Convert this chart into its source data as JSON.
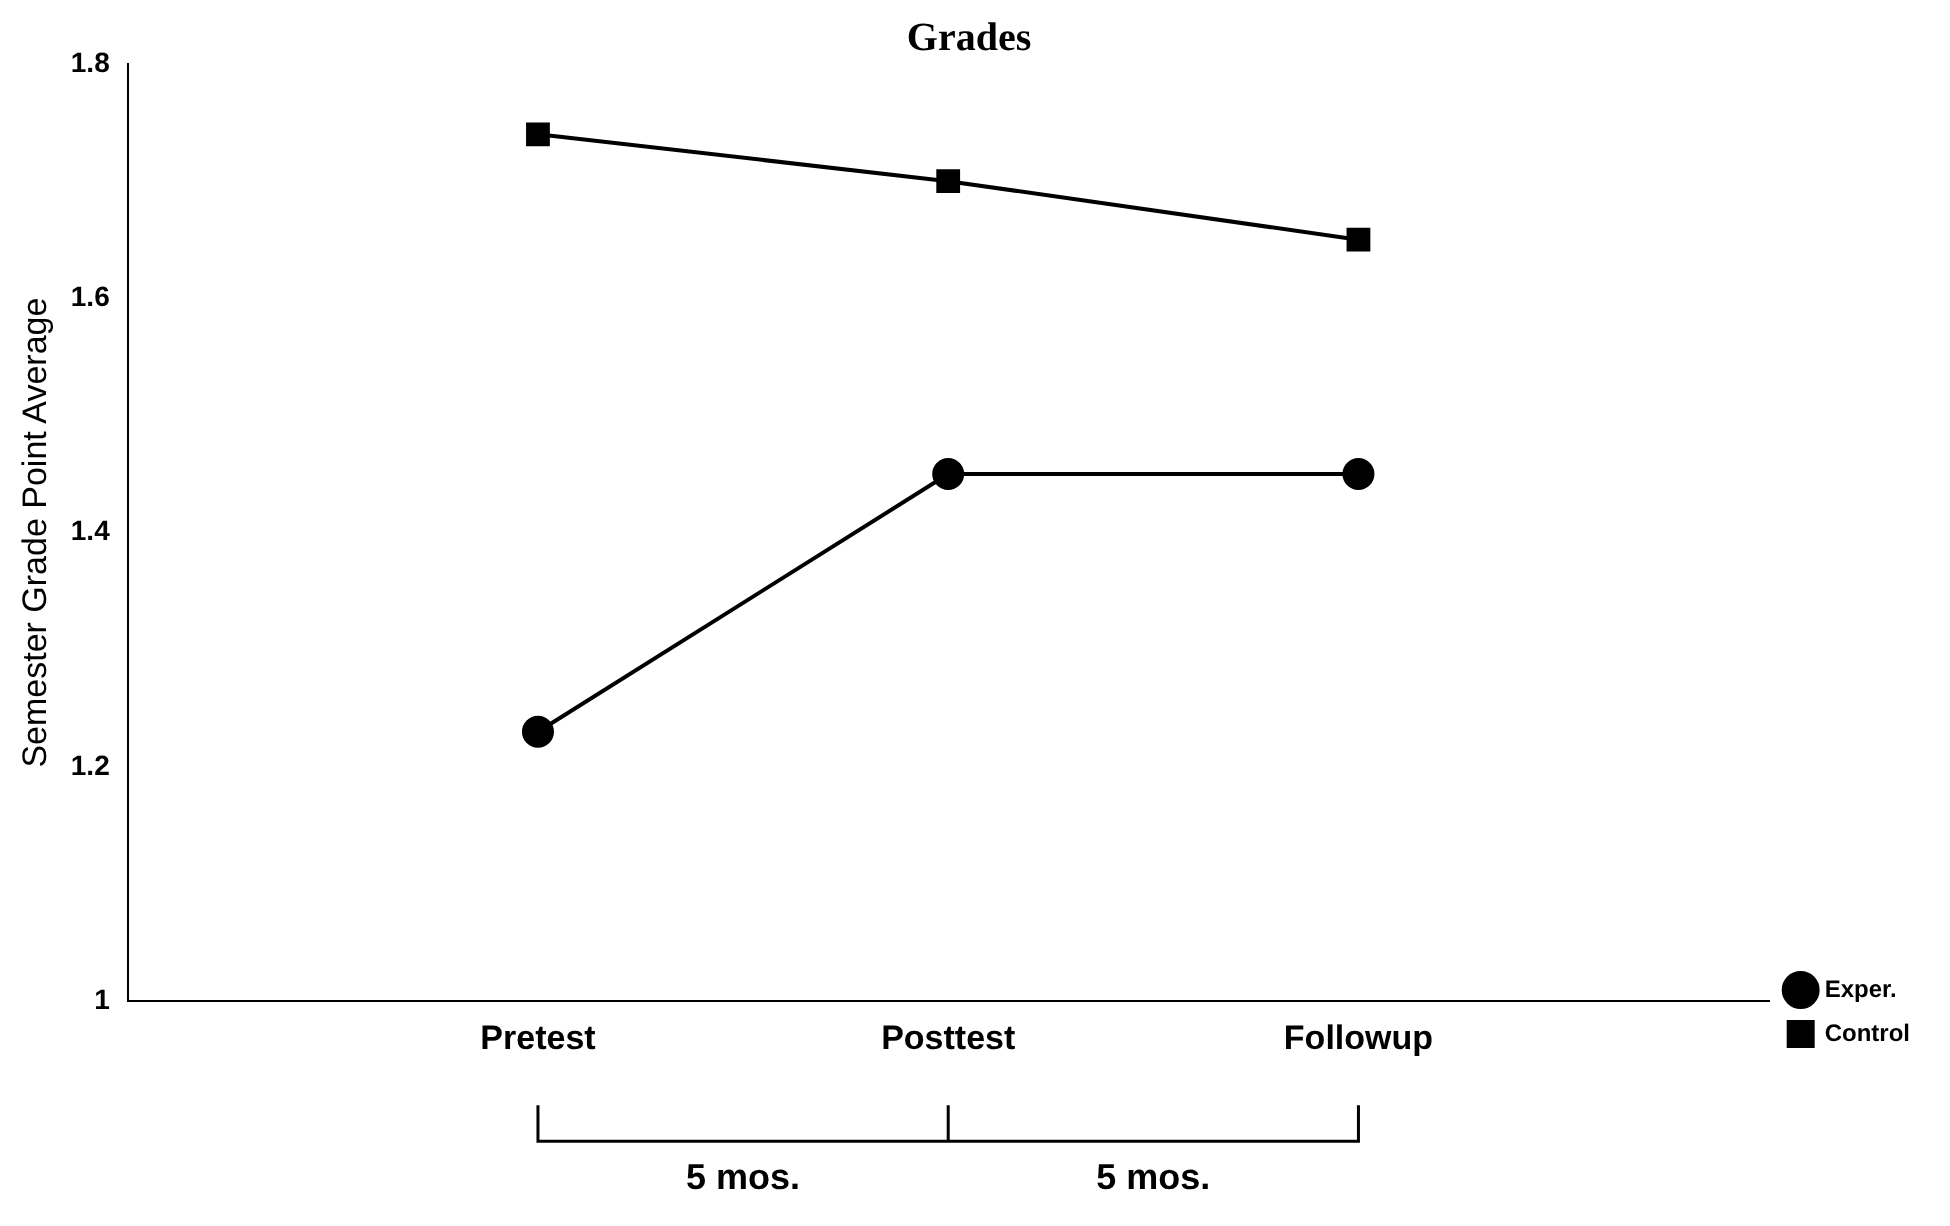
{
  "chart_data": {
    "type": "line",
    "title": "Grades",
    "ylabel": "Semester Grade Point Average",
    "categories": [
      null,
      "Pretest",
      "Posttest",
      "Followup",
      null
    ],
    "series": [
      {
        "name": "Exper.",
        "color": "#000000",
        "marker": "circle",
        "values": [
          null,
          1.23,
          1.45,
          1.45,
          null
        ]
      },
      {
        "name": "Control",
        "color": "#000000",
        "marker": "square",
        "values": [
          null,
          1.74,
          1.7,
          1.65,
          null
        ]
      }
    ],
    "ylim": [
      1,
      1.8
    ],
    "yticks": [
      1,
      1.2,
      1.4,
      1.6,
      1.8
    ],
    "grid": false,
    "legend": "bottom right",
    "line_style": "solid",
    "annotations": [
      "5 mos.",
      "5 mos."
    ]
  }
}
